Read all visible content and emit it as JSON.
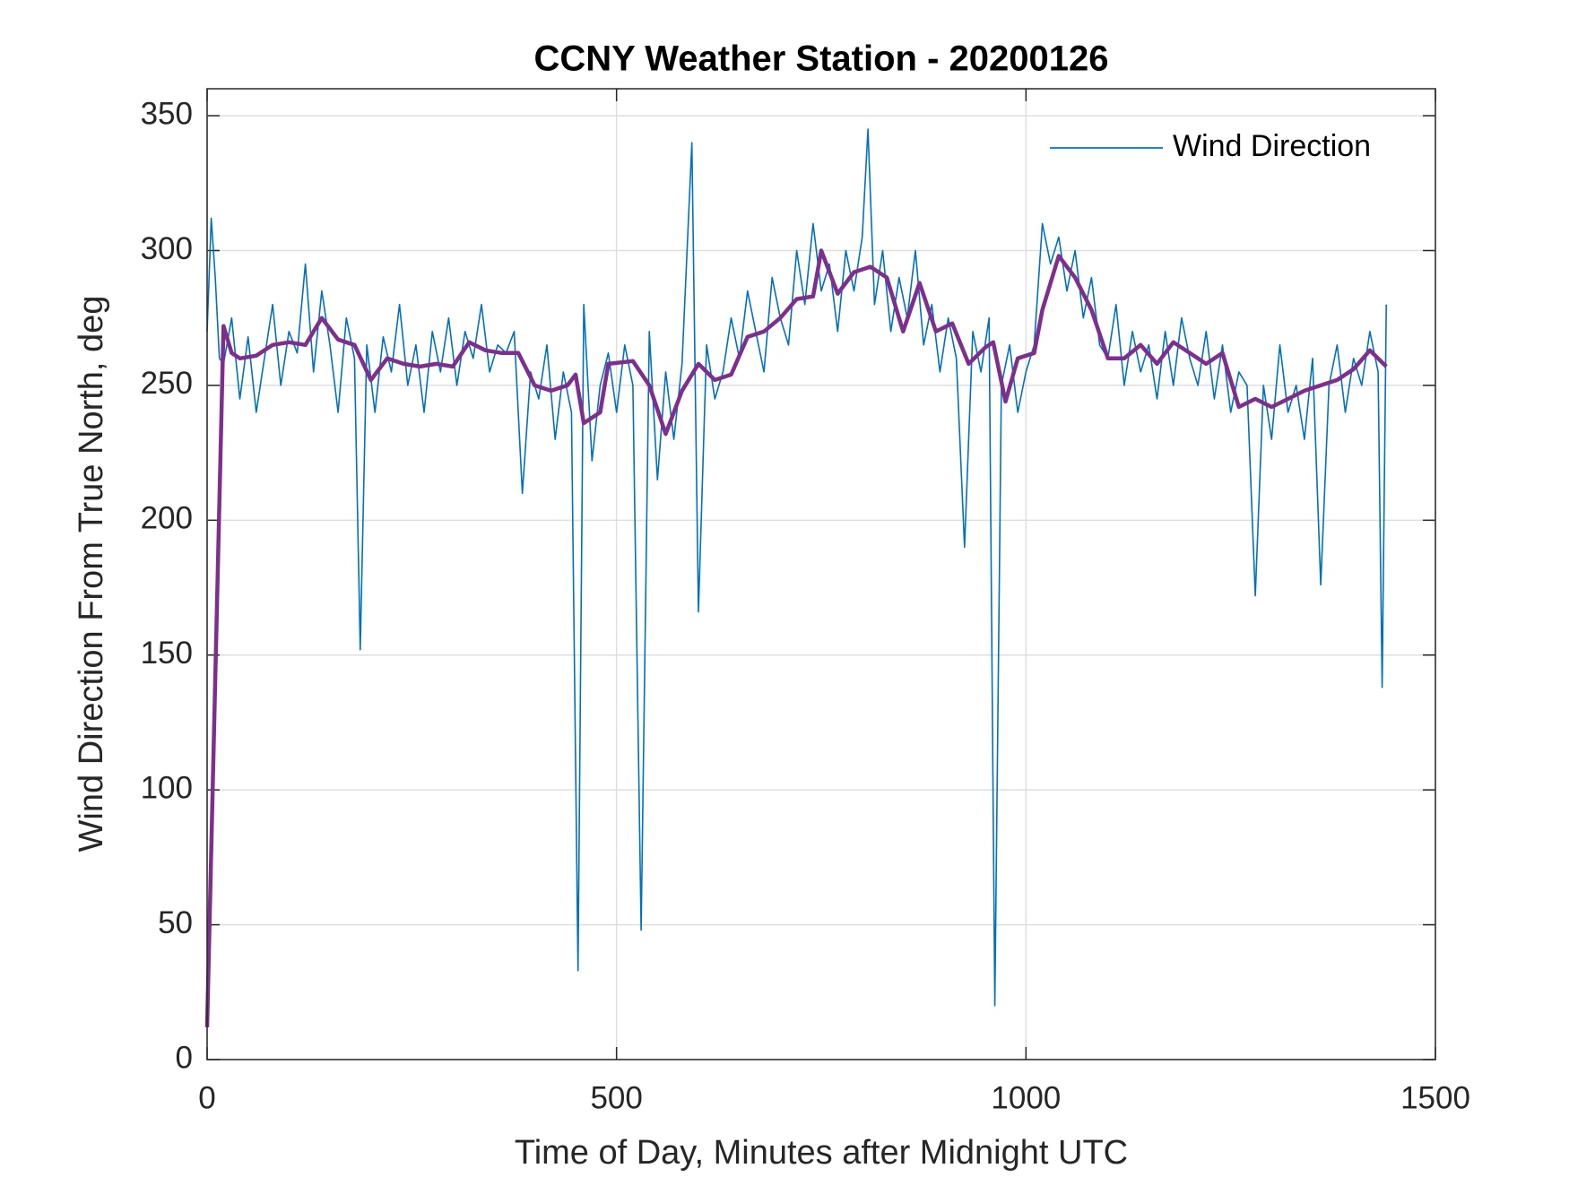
{
  "chart_data": {
    "type": "line",
    "title": "CCNY Weather Station - 20200126",
    "xlabel": "Time of Day, Minutes after Midnight UTC",
    "ylabel": "Wind Direction From True North, deg",
    "xlim": [
      0,
      1500
    ],
    "xticks": [
      0,
      500,
      1000,
      1500
    ],
    "ylim": [
      0,
      360
    ],
    "yticks": [
      0,
      50,
      100,
      150,
      200,
      250,
      300,
      350
    ],
    "grid": true,
    "legend": "upper right",
    "series": [
      {
        "name": "Wind Direction",
        "color": "#0072bd",
        "x": [
          0,
          5,
          10,
          15,
          20,
          30,
          40,
          50,
          60,
          70,
          80,
          90,
          100,
          110,
          120,
          130,
          140,
          150,
          160,
          170,
          180,
          187,
          195,
          205,
          215,
          225,
          235,
          245,
          255,
          265,
          275,
          285,
          295,
          305,
          315,
          325,
          335,
          345,
          355,
          365,
          375,
          385,
          395,
          405,
          415,
          425,
          435,
          445,
          453,
          460,
          470,
          480,
          490,
          500,
          510,
          520,
          530,
          540,
          550,
          560,
          570,
          580,
          592,
          600,
          610,
          620,
          630,
          640,
          650,
          660,
          670,
          680,
          690,
          700,
          710,
          720,
          730,
          740,
          750,
          760,
          770,
          780,
          790,
          800,
          807,
          815,
          825,
          835,
          845,
          855,
          865,
          875,
          885,
          895,
          905,
          915,
          925,
          935,
          945,
          955,
          962,
          970,
          980,
          990,
          1000,
          1010,
          1020,
          1030,
          1040,
          1050,
          1060,
          1070,
          1080,
          1090,
          1100,
          1110,
          1120,
          1130,
          1140,
          1150,
          1160,
          1170,
          1180,
          1190,
          1200,
          1210,
          1220,
          1230,
          1240,
          1250,
          1260,
          1270,
          1280,
          1290,
          1300,
          1310,
          1320,
          1330,
          1340,
          1350,
          1360,
          1370,
          1380,
          1390,
          1400,
          1410,
          1420,
          1430,
          1435,
          1440
        ],
        "values": [
          270,
          312,
          290,
          260,
          258,
          275,
          245,
          268,
          240,
          260,
          280,
          250,
          270,
          262,
          295,
          255,
          285,
          265,
          240,
          275,
          260,
          152,
          265,
          240,
          268,
          255,
          280,
          250,
          265,
          240,
          270,
          255,
          275,
          250,
          270,
          260,
          280,
          255,
          265,
          262,
          270,
          210,
          255,
          245,
          265,
          230,
          255,
          240,
          33,
          280,
          222,
          250,
          262,
          240,
          265,
          250,
          48,
          270,
          215,
          255,
          230,
          258,
          340,
          166,
          265,
          245,
          255,
          275,
          260,
          285,
          270,
          255,
          290,
          275,
          265,
          300,
          280,
          310,
          285,
          295,
          270,
          300,
          285,
          305,
          345,
          280,
          300,
          270,
          290,
          275,
          300,
          265,
          280,
          255,
          275,
          260,
          190,
          270,
          255,
          275,
          20,
          250,
          265,
          240,
          255,
          265,
          310,
          295,
          305,
          285,
          300,
          275,
          290,
          265,
          260,
          280,
          250,
          270,
          255,
          265,
          245,
          270,
          250,
          275,
          260,
          250,
          270,
          245,
          265,
          240,
          255,
          250,
          172,
          250,
          230,
          265,
          240,
          250,
          230,
          260,
          176,
          250,
          265,
          240,
          260,
          250,
          270,
          255,
          138,
          280
        ]
      },
      {
        "color": "#7e2f8e",
        "x": [
          0,
          20,
          30,
          40,
          60,
          80,
          100,
          120,
          140,
          160,
          180,
          200,
          220,
          240,
          260,
          280,
          300,
          320,
          340,
          360,
          380,
          400,
          420,
          440,
          450,
          460,
          480,
          490,
          520,
          540,
          560,
          580,
          600,
          620,
          640,
          660,
          680,
          700,
          720,
          740,
          750,
          770,
          790,
          810,
          830,
          850,
          870,
          890,
          910,
          930,
          950,
          960,
          975,
          990,
          1010,
          1020,
          1040,
          1060,
          1080,
          1100,
          1120,
          1140,
          1160,
          1180,
          1200,
          1220,
          1240,
          1260,
          1280,
          1300,
          1320,
          1340,
          1360,
          1380,
          1400,
          1420,
          1440
        ],
        "values": [
          12,
          272,
          262,
          260,
          261,
          265,
          266,
          265,
          275,
          267,
          265,
          252,
          260,
          258,
          257,
          258,
          257,
          266,
          263,
          262,
          262,
          250,
          248,
          250,
          254,
          236,
          240,
          258,
          259,
          250,
          232,
          248,
          258,
          252,
          254,
          268,
          270,
          275,
          282,
          283,
          300,
          284,
          292,
          294,
          290,
          270,
          288,
          270,
          273,
          258,
          264,
          266,
          244,
          260,
          262,
          278,
          298,
          290,
          278,
          260,
          260,
          265,
          258,
          266,
          262,
          258,
          262,
          242,
          245,
          242,
          245,
          248,
          250,
          252,
          256,
          263,
          257
        ]
      }
    ]
  }
}
